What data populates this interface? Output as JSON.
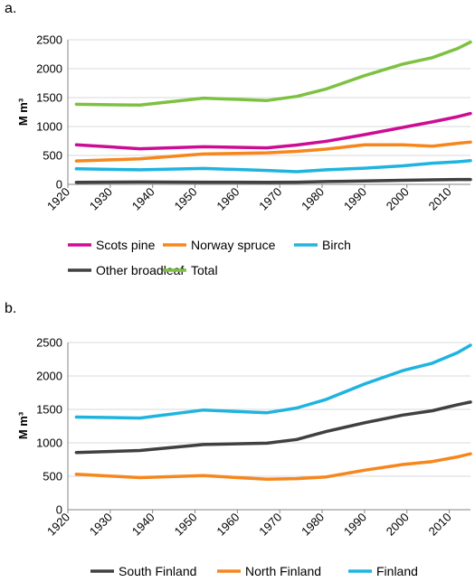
{
  "chart_data": [
    {
      "panel_label": "a.",
      "type": "line",
      "ylabel": "M m³",
      "ylim": [
        0,
        2500
      ],
      "yticks": [
        0,
        500,
        1000,
        1500,
        2000,
        2500
      ],
      "xlim": [
        1920,
        2015
      ],
      "xticks": [
        1920,
        1930,
        1940,
        1950,
        1960,
        1970,
        1980,
        1990,
        2000,
        2010
      ],
      "grid": "horizontal",
      "legend_position": "bottom",
      "x": [
        1922,
        1937,
        1952,
        1967,
        1974,
        1981,
        1990,
        1999,
        2006,
        2012,
        2015
      ],
      "series": [
        {
          "name": "Scots pine",
          "color": "#cc0d94",
          "values": [
            685,
            615,
            650,
            632,
            680,
            745,
            860,
            985,
            1080,
            1170,
            1225
          ]
        },
        {
          "name": "Norway spruce",
          "color": "#f7861c",
          "values": [
            405,
            440,
            525,
            545,
            570,
            610,
            685,
            685,
            660,
            710,
            730
          ]
        },
        {
          "name": "Birch",
          "color": "#1fb4e0",
          "values": [
            268,
            252,
            275,
            240,
            218,
            252,
            280,
            320,
            365,
            390,
            410
          ]
        },
        {
          "name": "Other broadleaf",
          "color": "#404040",
          "values": [
            35,
            40,
            38,
            35,
            38,
            48,
            58,
            70,
            78,
            85,
            85
          ]
        },
        {
          "name": "Total",
          "color": "#7dc142",
          "values": [
            1385,
            1370,
            1490,
            1450,
            1520,
            1650,
            1880,
            2080,
            2190,
            2350,
            2460
          ]
        }
      ]
    },
    {
      "panel_label": "b.",
      "type": "line",
      "ylabel": "M m³",
      "ylim": [
        0,
        2500
      ],
      "yticks": [
        0,
        500,
        1000,
        1500,
        2000,
        2500
      ],
      "xlim": [
        1920,
        2015
      ],
      "xticks": [
        1920,
        1930,
        1940,
        1950,
        1960,
        1970,
        1980,
        1990,
        2000,
        2010
      ],
      "grid": "horizontal",
      "legend_position": "bottom",
      "x": [
        1922,
        1937,
        1952,
        1967,
        1974,
        1981,
        1990,
        1999,
        2006,
        2012,
        2015
      ],
      "series": [
        {
          "name": "South Finland",
          "color": "#404040",
          "values": [
            855,
            885,
            975,
            995,
            1050,
            1170,
            1300,
            1415,
            1480,
            1570,
            1610
          ]
        },
        {
          "name": "North Finland",
          "color": "#f7861c",
          "values": [
            530,
            480,
            510,
            455,
            465,
            490,
            590,
            675,
            720,
            790,
            835
          ]
        },
        {
          "name": "Finland",
          "color": "#1fb4e0",
          "values": [
            1385,
            1370,
            1490,
            1450,
            1520,
            1650,
            1880,
            2080,
            2190,
            2350,
            2460
          ]
        }
      ]
    }
  ]
}
